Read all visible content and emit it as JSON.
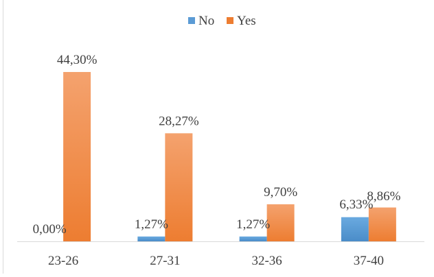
{
  "chart_data": {
    "type": "bar",
    "title": "",
    "xlabel": "",
    "ylabel": "",
    "categories": [
      "23-26",
      "27-31",
      "32-36",
      "37-40"
    ],
    "series": [
      {
        "name": "No",
        "color": "#5b9bd5",
        "values": [
          0.0,
          1.27,
          1.27,
          6.33
        ],
        "labels": [
          "0,00%",
          "1,27%",
          "1,27%",
          "6,33%"
        ]
      },
      {
        "name": "Yes",
        "color": "#ed7d31",
        "values": [
          44.3,
          28.27,
          9.7,
          8.86
        ],
        "labels": [
          "44,30%",
          "28,27%",
          "9,70%",
          "8,86%"
        ]
      }
    ],
    "ylim": [
      0,
      44.3
    ],
    "grid": false,
    "legend": "top-center",
    "axis_color": "#d9d9d9"
  }
}
